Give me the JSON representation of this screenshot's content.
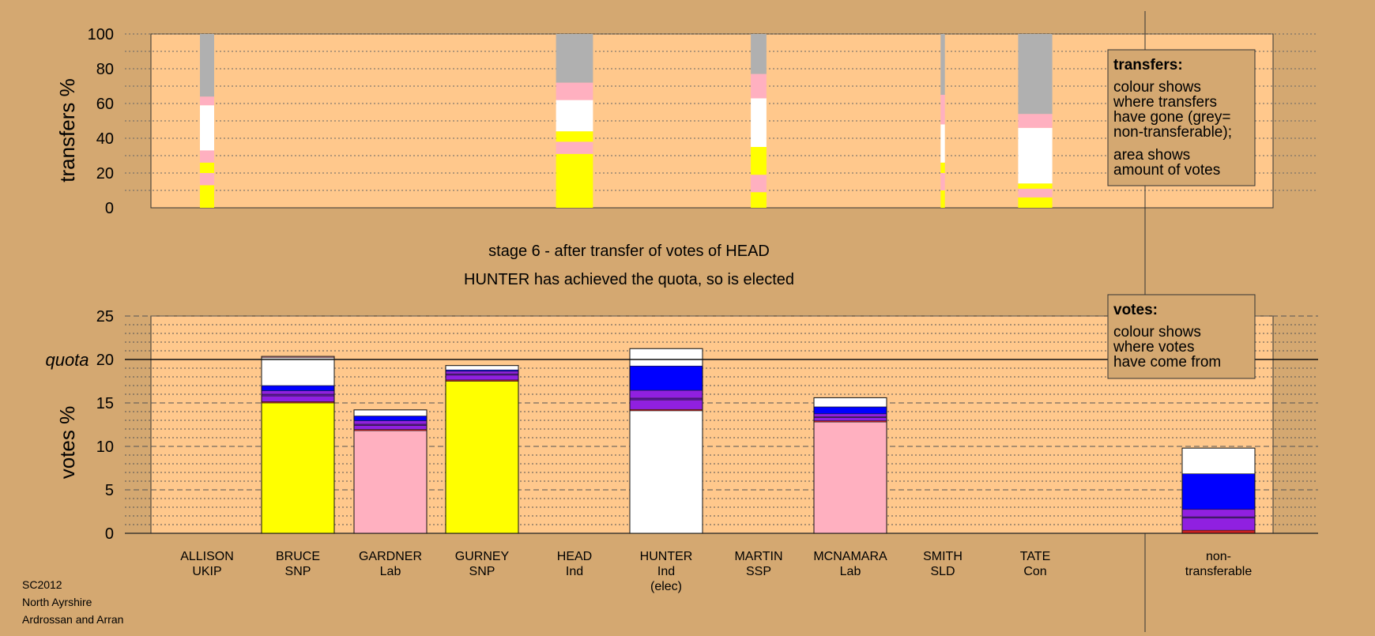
{
  "colors": {
    "background": "#d4a871",
    "panel": "#ffc88c",
    "UKIP": "#cc2020",
    "SNP": "#ffff00",
    "Lab": "#ffb0c0",
    "Ind": "#ffffff",
    "SSP": "#9020e0",
    "Ind_dark": "#6010b0",
    "SLD": "#2030e0",
    "Con": "#0000ff",
    "nontransferable": "#b0b0b0"
  },
  "headings": {
    "stage": "stage 6 - after transfer of votes of HEAD",
    "elected": "HUNTER has achieved the quota, so is elected"
  },
  "legends": {
    "transfers_title": "transfers:",
    "transfers_lines": [
      "colour shows",
      "where transfers",
      "have gone (grey=",
      "non-transferable);"
    ],
    "transfers_lines2": [
      "area shows",
      "amount of votes"
    ],
    "votes_title": "votes:",
    "votes_lines": [
      "colour shows",
      "where votes",
      "have come from"
    ]
  },
  "footer": {
    "line1": "SC2012",
    "line2": "North Ayrshire",
    "line3": "Ardrossan and Arran"
  },
  "chart_data": [
    {
      "type": "bar",
      "ylabel": "transfers %",
      "ylim": [
        0,
        100
      ],
      "yticks": [
        "0",
        "20",
        "40",
        "60",
        "80",
        "100"
      ],
      "ytick_values": [
        0,
        20,
        40,
        60,
        80,
        100
      ],
      "transfer_bars": [
        {
          "candidate": "ALLISON",
          "segments": [
            {
              "party": "SNP",
              "value": 13
            },
            {
              "party": "Lab",
              "value": 7
            },
            {
              "party": "SNP",
              "value": 6
            },
            {
              "party": "Lab",
              "value": 7
            },
            {
              "party": "Ind",
              "value": 26
            },
            {
              "party": "Lab",
              "value": 5
            },
            {
              "party": "nontransferable",
              "value": 36
            }
          ]
        },
        {
          "candidate": "HEAD",
          "segments": [
            {
              "party": "SNP",
              "value": 31
            },
            {
              "party": "Lab",
              "value": 7
            },
            {
              "party": "SNP",
              "value": 6
            },
            {
              "party": "Ind",
              "value": 18
            },
            {
              "party": "Lab",
              "value": 10
            },
            {
              "party": "nontransferable",
              "value": 28
            }
          ]
        },
        {
          "candidate": "MARTIN",
          "segments": [
            {
              "party": "SNP",
              "value": 9
            },
            {
              "party": "Lab",
              "value": 10
            },
            {
              "party": "SNP",
              "value": 16
            },
            {
              "party": "Ind",
              "value": 28
            },
            {
              "party": "Lab",
              "value": 14
            },
            {
              "party": "nontransferable",
              "value": 23
            }
          ]
        },
        {
          "candidate": "SMITH",
          "segments": [
            {
              "party": "SNP",
              "value": 10
            },
            {
              "party": "Lab",
              "value": 10
            },
            {
              "party": "SNP",
              "value": 6
            },
            {
              "party": "Ind",
              "value": 22
            },
            {
              "party": "Lab",
              "value": 17
            },
            {
              "party": "nontransferable",
              "value": 35
            }
          ]
        },
        {
          "candidate": "TATE",
          "segments": [
            {
              "party": "SNP",
              "value": 6
            },
            {
              "party": "Lab",
              "value": 5
            },
            {
              "party": "SNP",
              "value": 3
            },
            {
              "party": "Ind",
              "value": 32
            },
            {
              "party": "Lab",
              "value": 8
            },
            {
              "party": "nontransferable",
              "value": 46
            }
          ]
        }
      ],
      "transfer_widths": {
        "ALLISON": 1.0,
        "HEAD": 2.6,
        "MARTIN": 1.1,
        "SMITH": 0.3,
        "TATE": 2.4
      }
    },
    {
      "type": "bar",
      "ylabel": "votes %",
      "quota_label": "quota",
      "quota": 20,
      "ylim": [
        0,
        25
      ],
      "yticks": [
        "0",
        "5",
        "10",
        "15",
        "20",
        "25"
      ],
      "ytick_values": [
        0,
        5,
        10,
        15,
        20,
        25
      ],
      "categories": [
        {
          "id": "ALLISON",
          "line1": "ALLISON",
          "line2": "UKIP",
          "line3": ""
        },
        {
          "id": "BRUCE",
          "line1": "BRUCE",
          "line2": "SNP",
          "line3": ""
        },
        {
          "id": "GARDNER",
          "line1": "GARDNER",
          "line2": "Lab",
          "line3": ""
        },
        {
          "id": "GURNEY",
          "line1": "GURNEY",
          "line2": "SNP",
          "line3": ""
        },
        {
          "id": "HEAD",
          "line1": "HEAD",
          "line2": "Ind",
          "line3": ""
        },
        {
          "id": "HUNTER",
          "line1": "HUNTER",
          "line2": "Ind",
          "line3": "(elec)"
        },
        {
          "id": "MARTIN",
          "line1": "MARTIN",
          "line2": "SSP",
          "line3": ""
        },
        {
          "id": "MCNAMARA",
          "line1": "MCNAMARA",
          "line2": "Lab",
          "line3": ""
        },
        {
          "id": "SMITH",
          "line1": "SMITH",
          "line2": "SLD",
          "line3": ""
        },
        {
          "id": "TATE",
          "line1": "TATE",
          "line2": "Con",
          "line3": ""
        },
        {
          "id": "NT",
          "line1": "non-",
          "line2": "transferable",
          "line3": ""
        }
      ],
      "vote_bars": {
        "BRUCE": [
          {
            "party": "SNP",
            "value": 15.0
          },
          {
            "party": "UKIP",
            "value": 0.15
          },
          {
            "party": "SSP",
            "value": 0.65
          },
          {
            "party": "Ind_dark",
            "value": 0.2
          },
          {
            "party": "SSP",
            "value": 0.4
          },
          {
            "party": "Con",
            "value": 0.6
          },
          {
            "party": "Ind",
            "value": 3.2
          },
          {
            "party": "Lab",
            "value": 0.15
          }
        ],
        "GARDNER": [
          {
            "party": "Lab",
            "value": 11.8
          },
          {
            "party": "UKIP",
            "value": 0.15
          },
          {
            "party": "SSP",
            "value": 0.45
          },
          {
            "party": "Ind_dark",
            "value": 0.15
          },
          {
            "party": "SSP",
            "value": 0.4
          },
          {
            "party": "Con",
            "value": 0.55
          },
          {
            "party": "Ind",
            "value": 0.7
          }
        ],
        "GURNEY": [
          {
            "party": "SNP",
            "value": 17.5
          },
          {
            "party": "UKIP",
            "value": 0.15
          },
          {
            "party": "SSP",
            "value": 0.55
          },
          {
            "party": "Ind_dark",
            "value": 0.15
          },
          {
            "party": "SSP",
            "value": 0.3
          },
          {
            "party": "Con",
            "value": 0.15
          },
          {
            "party": "Ind",
            "value": 0.5
          }
        ],
        "HUNTER": [
          {
            "party": "Ind",
            "value": 14.1
          },
          {
            "party": "UKIP",
            "value": 0.15
          },
          {
            "party": "SSP",
            "value": 1.1
          },
          {
            "party": "Ind_dark",
            "value": 0.2
          },
          {
            "party": "SSP",
            "value": 0.9
          },
          {
            "party": "Con",
            "value": 2.8
          },
          {
            "party": "Ind",
            "value": 2.0
          }
        ],
        "MCNAMARA": [
          {
            "party": "Lab",
            "value": 12.8
          },
          {
            "party": "UKIP",
            "value": 0.15
          },
          {
            "party": "SSP",
            "value": 0.35
          },
          {
            "party": "Ind_dark",
            "value": 0.1
          },
          {
            "party": "SSP",
            "value": 0.35
          },
          {
            "party": "Con",
            "value": 0.8
          },
          {
            "party": "Ind",
            "value": 1.05
          }
        ],
        "NT": [
          {
            "party": "UKIP",
            "value": 0.35
          },
          {
            "party": "SSP",
            "value": 1.4
          },
          {
            "party": "Ind_dark",
            "value": 0.15
          },
          {
            "party": "SSP",
            "value": 0.85
          },
          {
            "party": "Con",
            "value": 4.1
          },
          {
            "party": "Ind",
            "value": 2.95
          }
        ]
      }
    }
  ]
}
